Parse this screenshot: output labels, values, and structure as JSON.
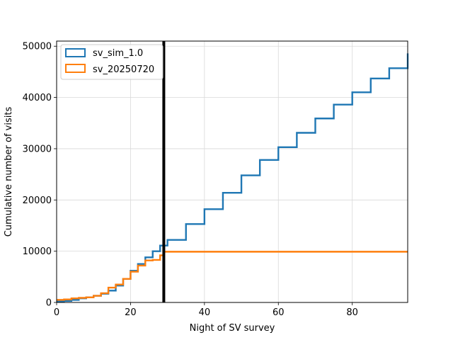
{
  "chart_data": {
    "type": "line",
    "title": "",
    "xlabel": "Night of SV survey",
    "ylabel": "Cumulative number of visits",
    "xlim": [
      0,
      95
    ],
    "ylim": [
      0,
      51000
    ],
    "x_ticks": [
      0,
      20,
      40,
      60,
      80
    ],
    "y_ticks": [
      0,
      10000,
      20000,
      30000,
      40000,
      50000
    ],
    "grid": true,
    "legend_position": "top-left",
    "vline": {
      "x": 29,
      "color": "#000000"
    },
    "series": [
      {
        "name": "sv_sim_1.0",
        "color": "#1f77b4",
        "style": "step",
        "x": [
          0,
          2,
          4,
          6,
          8,
          10,
          12,
          14,
          16,
          18,
          20,
          22,
          24,
          26,
          28,
          30,
          35,
          40,
          45,
          50,
          55,
          60,
          65,
          70,
          75,
          80,
          85,
          90,
          95
        ],
        "y": [
          200,
          300,
          500,
          800,
          1000,
          1300,
          1700,
          2300,
          3300,
          4600,
          6200,
          7500,
          8800,
          10000,
          11100,
          12200,
          15300,
          18200,
          21400,
          24800,
          27800,
          30300,
          33100,
          35900,
          38600,
          41000,
          43700,
          45700,
          48600
        ]
      },
      {
        "name": "sv_20250720",
        "color": "#ff7f0e",
        "style": "step",
        "x": [
          0,
          2,
          4,
          6,
          8,
          10,
          12,
          14,
          16,
          18,
          20,
          22,
          24,
          26,
          28,
          29,
          95
        ],
        "y": [
          500,
          600,
          800,
          900,
          1000,
          1300,
          1800,
          2900,
          3500,
          4600,
          6000,
          7200,
          8200,
          8300,
          9200,
          9900,
          9900
        ]
      }
    ]
  }
}
